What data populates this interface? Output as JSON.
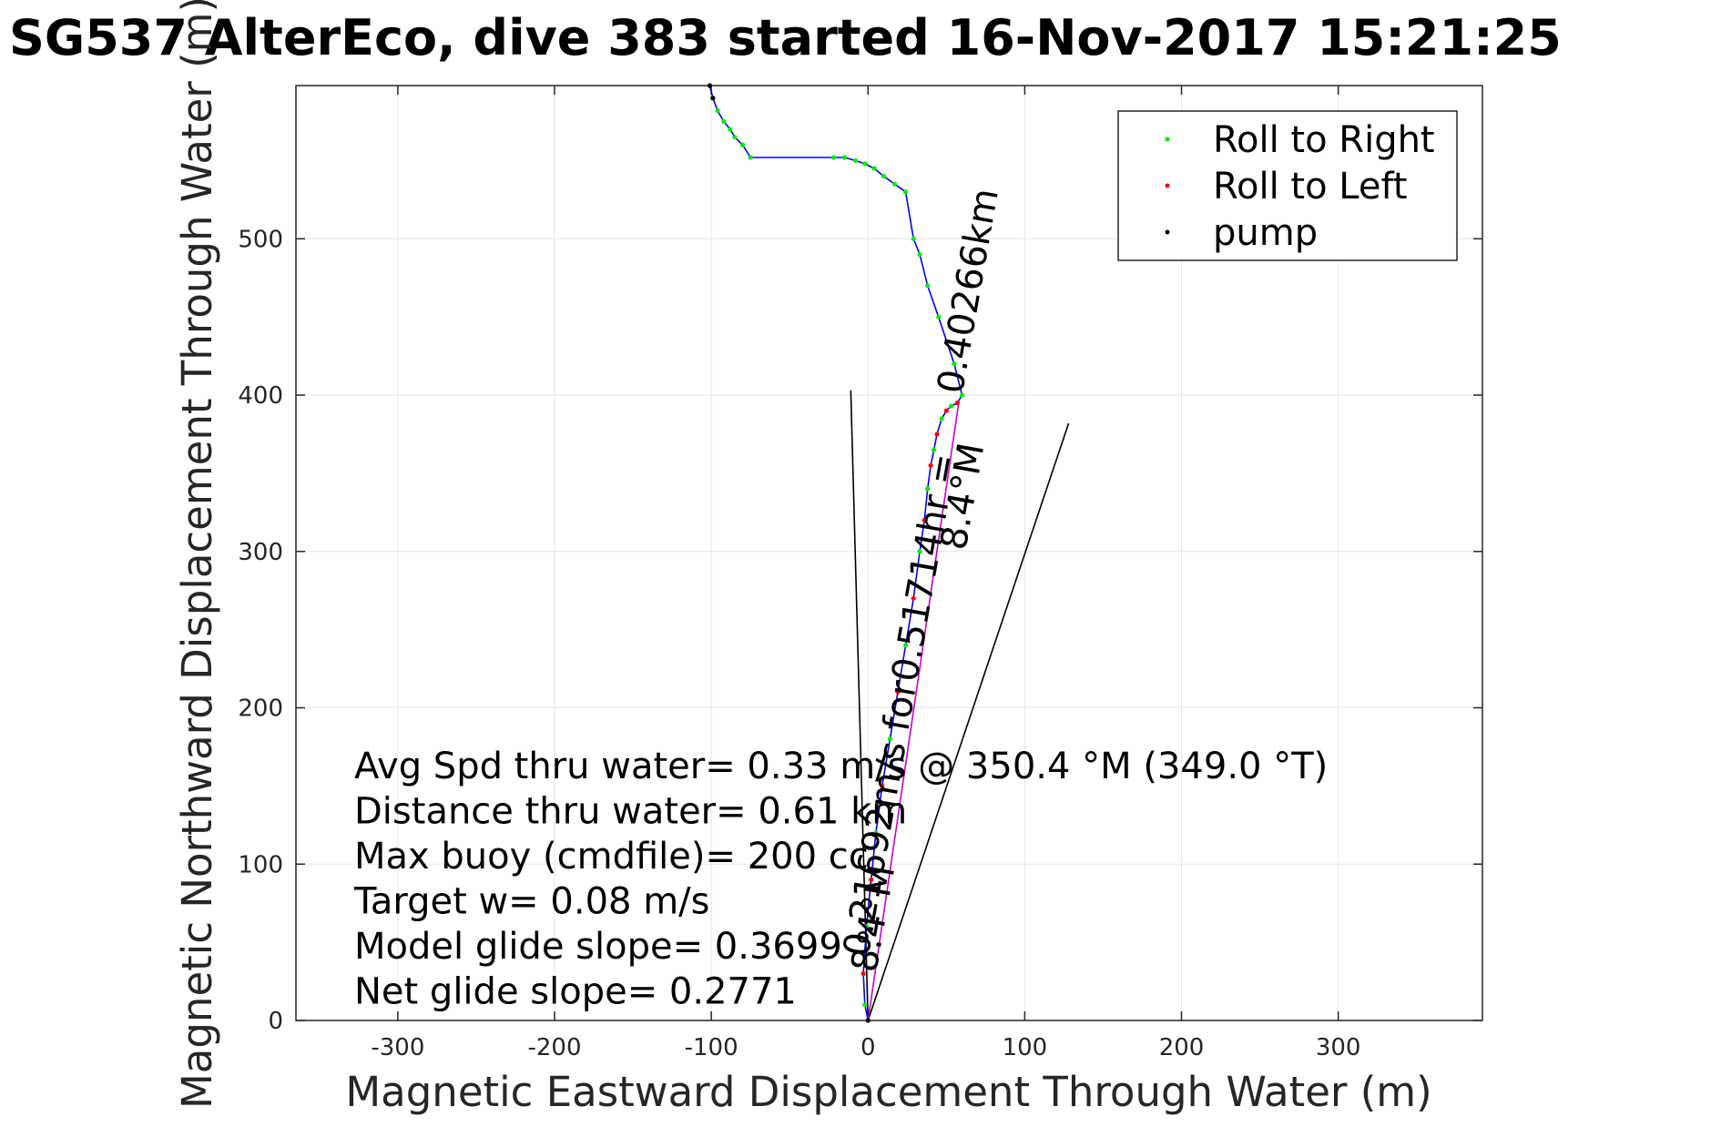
{
  "chart_data": {
    "type": "line",
    "title": "SG537 AlterEco, dive 383 started 16-Nov-2017 15:21:25",
    "xlabel": "Magnetic Eastward Displacement Through Water (m)",
    "ylabel": "Magnetic Northward Displacement Through Water (m)",
    "xlim": [
      -365,
      392
    ],
    "ylim": [
      0,
      598
    ],
    "xticks": [
      -300,
      -200,
      -100,
      0,
      100,
      200,
      300
    ],
    "xtick_labels": [
      "-300",
      "-200",
      "-100",
      "0",
      "100",
      "200",
      "300"
    ],
    "yticks": [
      0,
      100,
      200,
      300,
      400,
      500
    ],
    "ytick_labels": [
      "0",
      "100",
      "200",
      "300",
      "400",
      "500"
    ],
    "grid": true,
    "legend_placement": "top-right",
    "legend": [
      "Roll to Right",
      "Roll to Left",
      "pump"
    ],
    "colors": {
      "track": "#0000ff",
      "roll_right": "#00ee00",
      "roll_left": "#ff0000",
      "pump": "#000000",
      "drift_line": "#cc00cc",
      "axes": "#262626",
      "grid": "#e6e6e6"
    },
    "series": [
      {
        "name": "track",
        "x": [
          0,
          -2,
          -3,
          -1,
          2,
          5,
          9,
          14,
          19,
          24,
          29,
          33,
          36,
          38,
          40,
          42,
          44,
          47,
          50,
          53,
          57,
          60,
          55,
          45,
          38,
          33,
          29,
          24,
          17,
          10,
          4,
          -2,
          -8,
          -15,
          -22,
          -75,
          -80,
          -85,
          -88,
          -92,
          -96,
          -99,
          -101
        ],
        "y": [
          0,
          10,
          30,
          60,
          90,
          120,
          150,
          180,
          210,
          240,
          270,
          300,
          320,
          340,
          355,
          365,
          375,
          385,
          390,
          393,
          395,
          400,
          420,
          450,
          470,
          490,
          500,
          530,
          535,
          540,
          545,
          548,
          550,
          552,
          552,
          552,
          560,
          565,
          570,
          575,
          582,
          590,
          598
        ]
      },
      {
        "name": "drift",
        "x": [
          0,
          58
        ],
        "y": [
          0,
          396
        ]
      },
      {
        "name": "heading-left",
        "x": [
          0,
          -11
        ],
        "y": [
          0,
          403
        ]
      },
      {
        "name": "heading-right",
        "x": [
          0,
          128
        ],
        "y": [
          0,
          382
        ]
      }
    ],
    "annotations": [
      {
        "text": "0.40266km",
        "x": 60,
        "y": 400,
        "rotation": -80
      },
      {
        "text": "8.4°M",
        "x": 62,
        "y": 300,
        "rotation": -80
      },
      {
        "text": "0.21692m/s for0.51714hr =",
        "x": 0,
        "y": 40,
        "rotation": -80
      },
      {
        "text": "8.4°M",
        "x": 5,
        "y": 30,
        "rotation": -80
      }
    ],
    "stats": [
      "Avg Spd thru water=  0.33 m/s @ 350.4 °M (349.0 °T)",
      "Distance thru water=  0.61 km",
      "Max buoy (cmdfile)= 200 cc",
      "Target w= 0.08 m/s",
      "Model glide slope= 0.3699 °",
      "Net glide slope= 0.2771"
    ]
  }
}
